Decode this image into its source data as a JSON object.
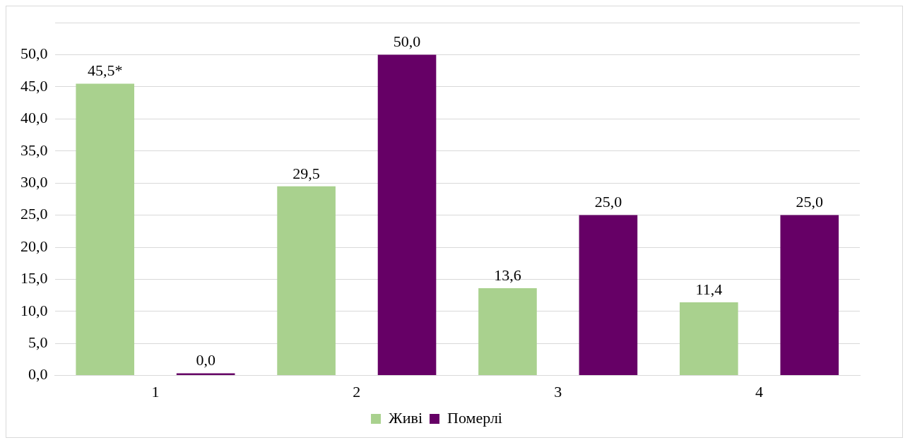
{
  "chart_data": {
    "type": "bar",
    "categories": [
      "1",
      "2",
      "3",
      "4"
    ],
    "series": [
      {
        "name": "Живі",
        "color": "#a9d18e",
        "values": [
          45.5,
          29.5,
          13.6,
          11.4
        ],
        "value_labels": [
          "45,5*",
          "29,5",
          "13,6",
          "11,4"
        ]
      },
      {
        "name": "Померлі",
        "color": "#660066",
        "values": [
          0,
          50,
          25,
          25
        ],
        "value_labels": [
          "0,0",
          "50,0",
          "25,0",
          "25,0"
        ]
      }
    ],
    "ylim": [
      0,
      55
    ],
    "yticks": [
      {
        "value": 0,
        "label": "0,0"
      },
      {
        "value": 5,
        "label": "5,0"
      },
      {
        "value": 10,
        "label": "10,0"
      },
      {
        "value": 15,
        "label": "15,0"
      },
      {
        "value": 20,
        "label": "20,0"
      },
      {
        "value": 25,
        "label": "25,0"
      },
      {
        "value": 30,
        "label": "30,0"
      },
      {
        "value": 35,
        "label": "35,0"
      },
      {
        "value": 40,
        "label": "40,0"
      },
      {
        "value": 45,
        "label": "45,0"
      },
      {
        "value": 50,
        "label": "50,0"
      },
      {
        "value": 55,
        "label": null
      }
    ],
    "grid": "y",
    "legend": "bottom"
  }
}
